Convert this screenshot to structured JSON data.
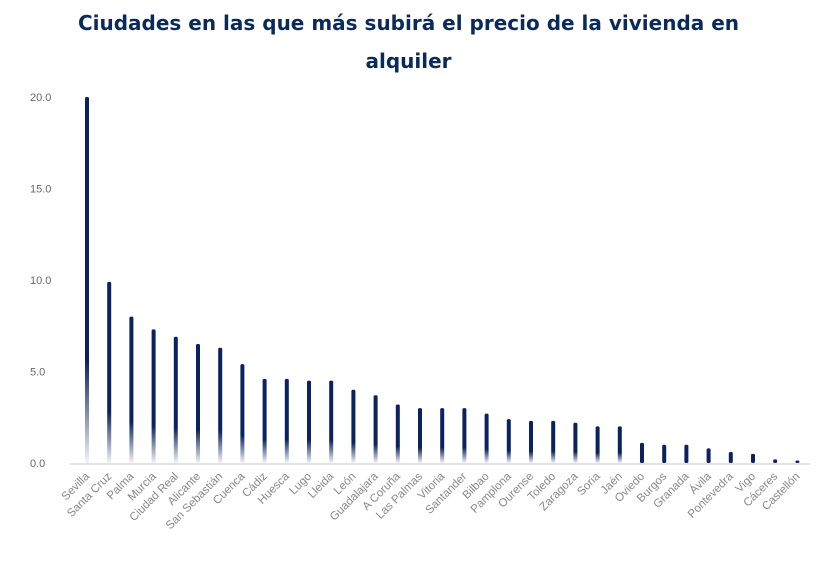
{
  "colors": {
    "bar": "#0b2260",
    "title": "#0b2a5c",
    "axis": "#d9d9d9",
    "text": "#777777"
  },
  "chart_data": {
    "type": "bar",
    "title_lines": [
      "Ciudades en las que más subirá el precio de la vivienda en",
      "alquiler"
    ],
    "xlabel": "",
    "ylabel": "",
    "ylim": [
      0,
      20
    ],
    "yticks": [
      "0.0",
      "5.0",
      "10.0",
      "15.0",
      "20.0"
    ],
    "grid": false,
    "categories": [
      "Sevilla",
      "Santa Cruz",
      "Palma",
      "Murcia",
      "Ciudad Real",
      "Alicante",
      "San Sebastián",
      "Cuenca",
      "Cádiz",
      "Huesca",
      "Lugo",
      "Lleida",
      "León",
      "Guadalajara",
      "A Coruña",
      "Las Palmas",
      "Vitoria",
      "Santander",
      "Bilbao",
      "Pamplona",
      "Ourense",
      "Toledo",
      "Zaragoza",
      "Soria",
      "Jaén",
      "Oviedo",
      "Burgos",
      "Granada",
      "Ávila",
      "Pontevedra",
      "Vigo",
      "Cáceres",
      "Castellón"
    ],
    "values": [
      20.0,
      9.9,
      8.0,
      7.3,
      6.9,
      6.5,
      6.3,
      5.4,
      4.6,
      4.6,
      4.5,
      4.5,
      4.0,
      3.7,
      3.2,
      3.0,
      3.0,
      3.0,
      2.7,
      2.4,
      2.3,
      2.3,
      2.2,
      2.0,
      2.0,
      1.1,
      1.0,
      1.0,
      0.8,
      0.6,
      0.5,
      0.2,
      0.1
    ]
  }
}
